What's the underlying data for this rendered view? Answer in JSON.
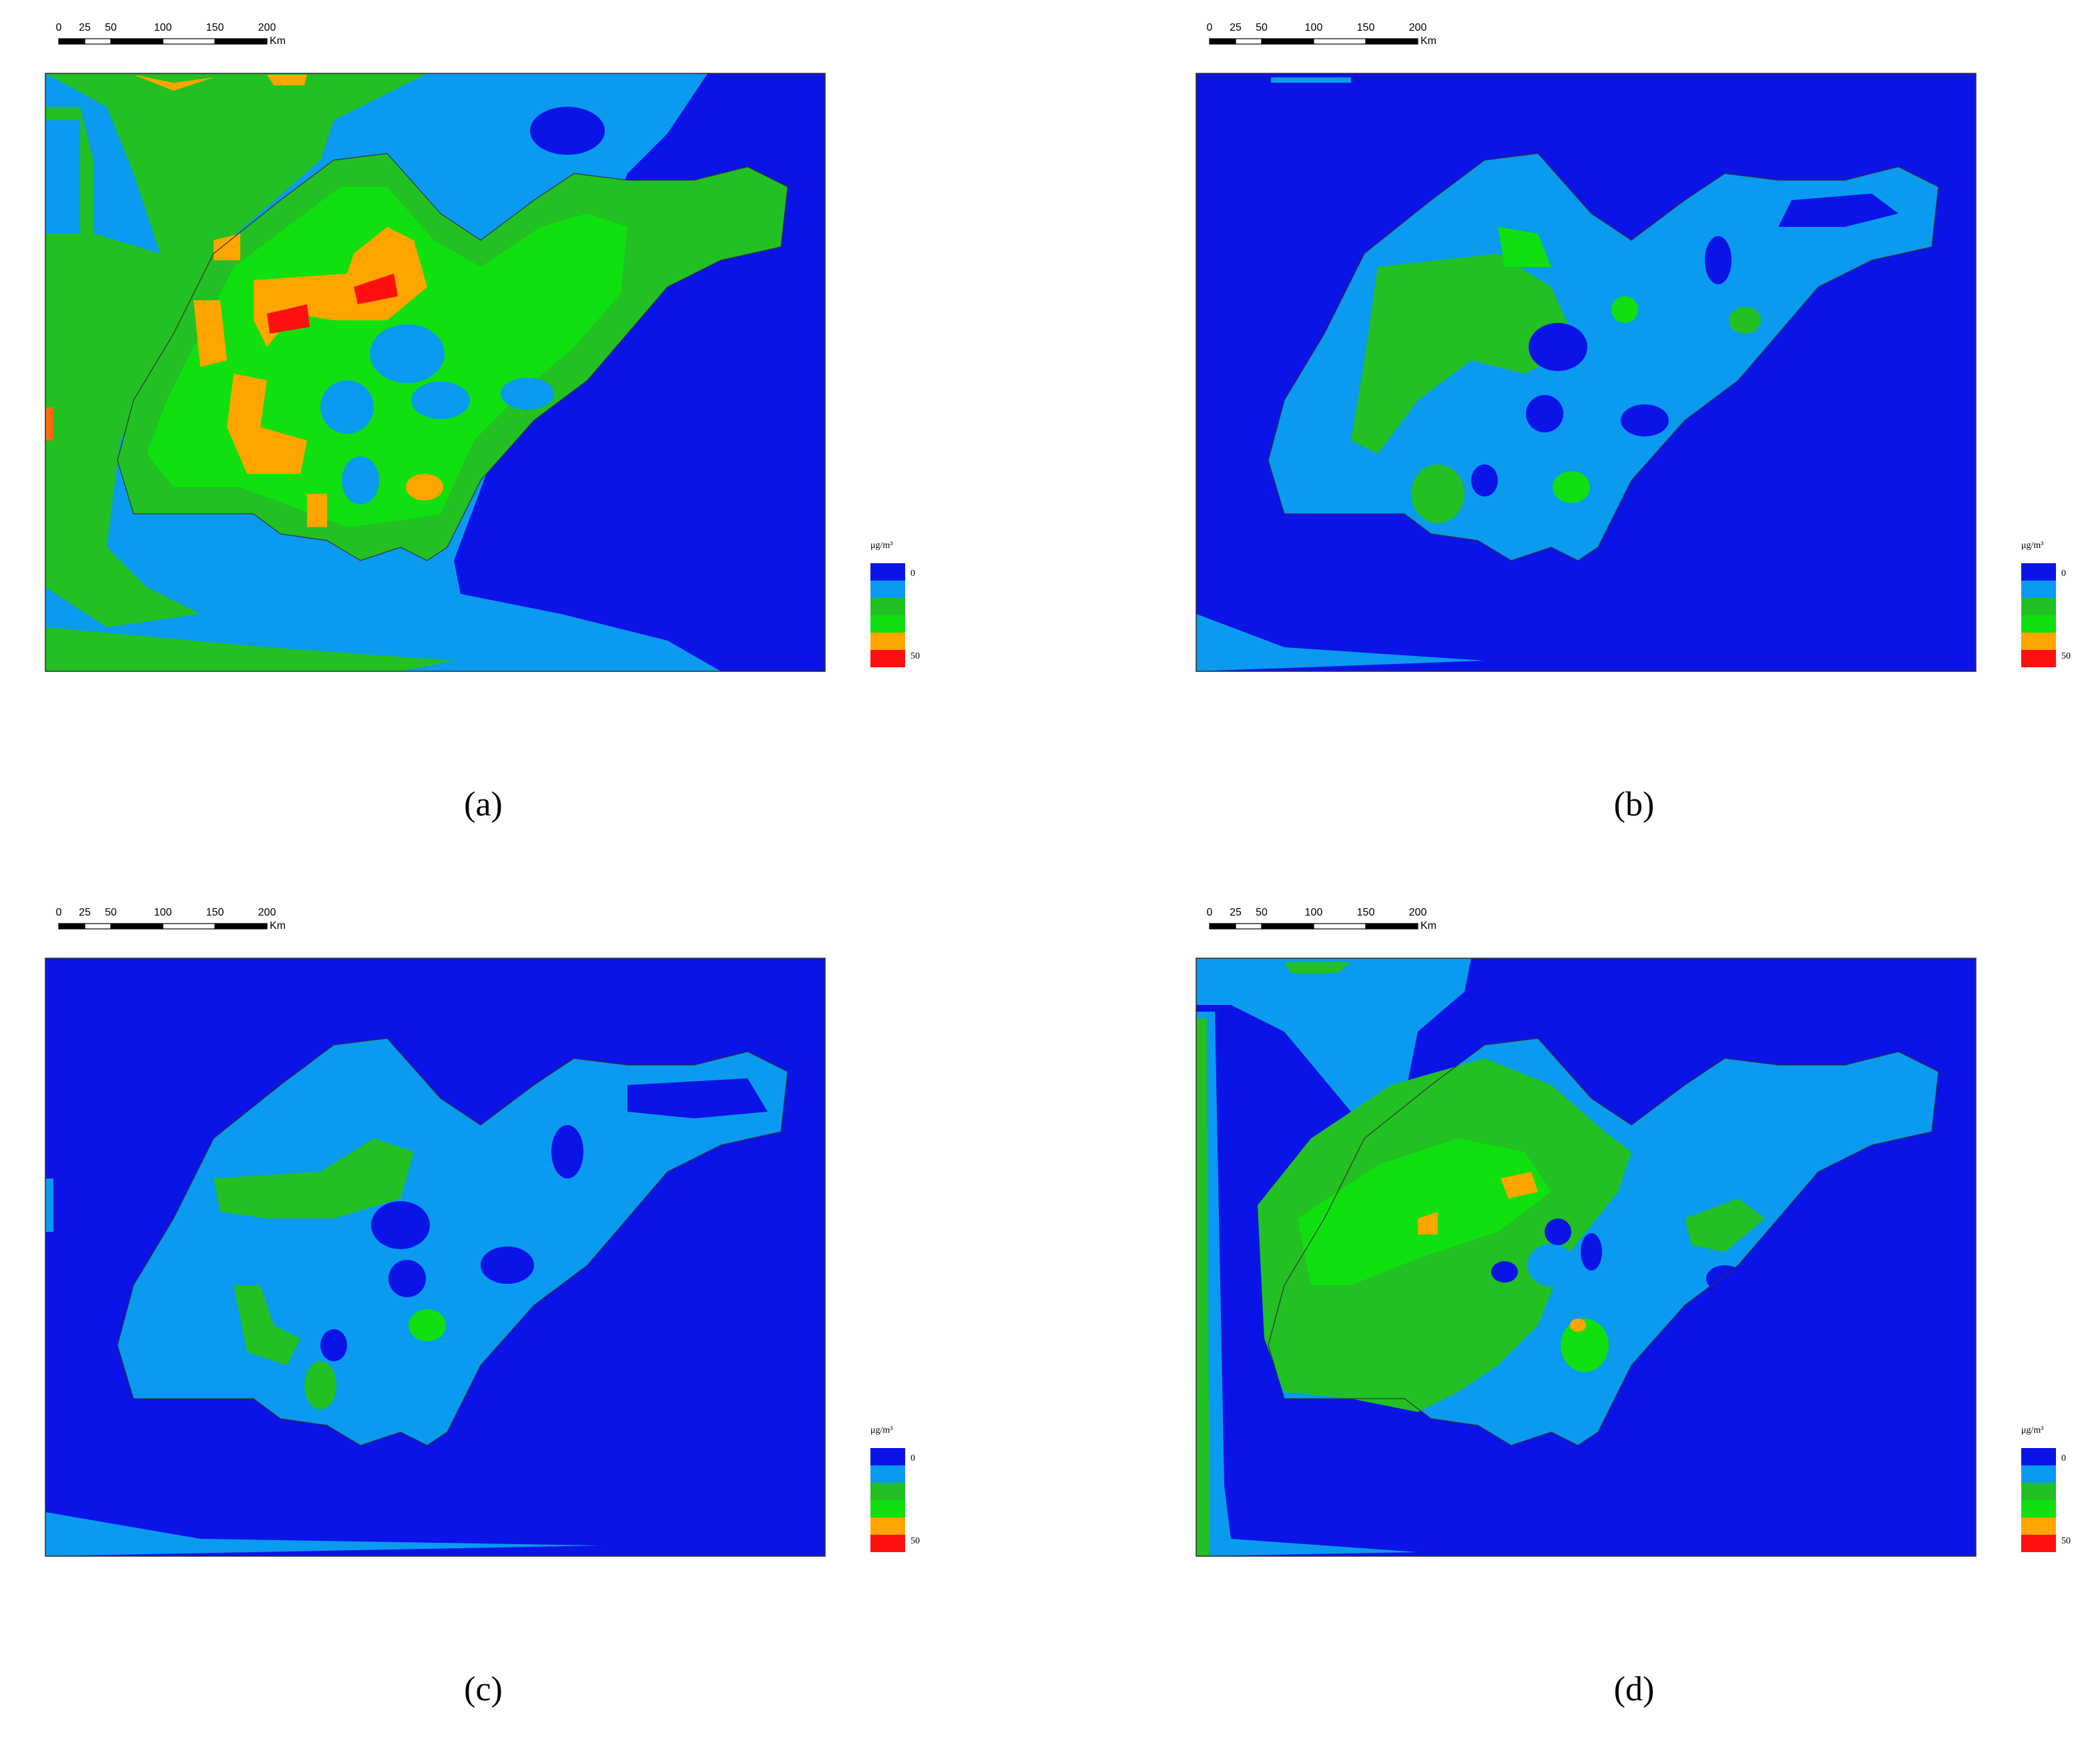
{
  "panels": [
    {
      "caption": "(a)",
      "scale_bar": {
        "labels": [
          0,
          25,
          50,
          100,
          150,
          200
        ],
        "unit": "Km"
      },
      "legend": {
        "unit": "μg/m³",
        "min_label": "0",
        "max_label": "50",
        "colors": [
          "#0a14e6",
          "#0a9af0",
          "#22c022",
          "#10e010",
          "#ffa500",
          "#ff1010"
        ]
      }
    },
    {
      "caption": "(b)",
      "scale_bar": {
        "labels": [
          0,
          25,
          50,
          100,
          150,
          200
        ],
        "unit": "Km"
      },
      "legend": {
        "unit": "μg/m³",
        "min_label": "0",
        "max_label": "50",
        "colors": [
          "#0a14e6",
          "#0a9af0",
          "#22c022",
          "#10e010",
          "#ffa500",
          "#ff1010"
        ]
      }
    },
    {
      "caption": "(c)",
      "scale_bar": {
        "labels": [
          0,
          25,
          50,
          100,
          150,
          200
        ],
        "unit": "Km"
      },
      "legend": {
        "unit": "μg/m³",
        "min_label": "0",
        "max_label": "50",
        "colors": [
          "#0a14e6",
          "#0a9af0",
          "#22c022",
          "#10e010",
          "#ffa500",
          "#ff1010"
        ]
      }
    },
    {
      "caption": "(d)",
      "scale_bar": {
        "labels": [
          0,
          25,
          50,
          100,
          150,
          200
        ],
        "unit": "Km"
      },
      "legend": {
        "unit": "μg/m³",
        "min_label": "0",
        "max_label": "50",
        "colors": [
          "#0a14e6",
          "#0a9af0",
          "#22c022",
          "#10e010",
          "#ffa500",
          "#ff1010"
        ]
      }
    }
  ]
}
